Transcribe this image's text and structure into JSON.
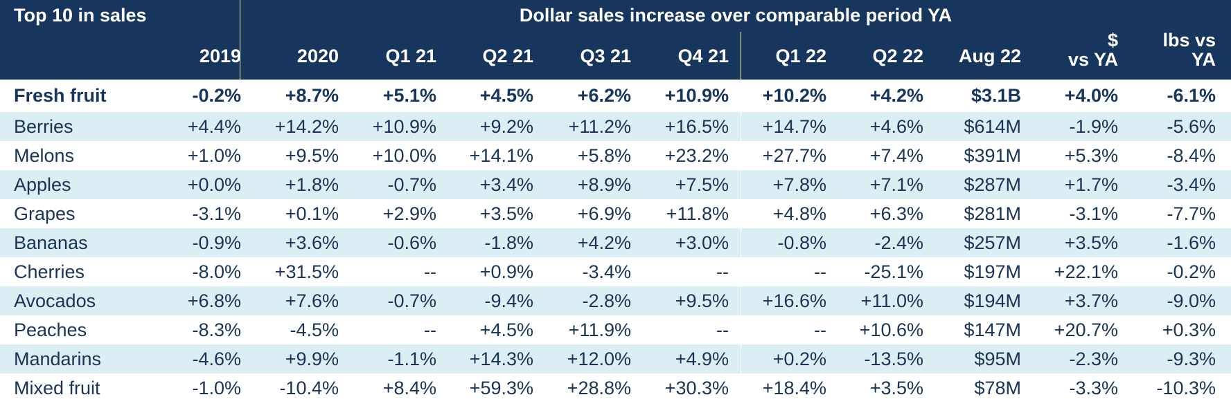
{
  "header": {
    "left_title": "Top 10 in sales",
    "right_title": "Dollar sales increase over comparable period YA",
    "columns": [
      {
        "key": "2019",
        "label": "2019"
      },
      {
        "key": "2020",
        "label": "2020"
      },
      {
        "key": "q1_21",
        "label": "Q1 21"
      },
      {
        "key": "q2_21",
        "label": "Q2 21"
      },
      {
        "key": "q3_21",
        "label": "Q3 21"
      },
      {
        "key": "q4_21",
        "label": "Q4 21"
      },
      {
        "key": "q1_22",
        "label": "Q1 22"
      },
      {
        "key": "q2_22",
        "label": "Q2 22"
      },
      {
        "key": "aug_22",
        "label": "Aug 22"
      },
      {
        "key": "dollar_vs_ya",
        "label": "$",
        "label2": "vs YA"
      },
      {
        "key": "lbs_vs_ya",
        "label": "lbs vs",
        "label2": "YA"
      }
    ]
  },
  "rows": [
    {
      "label": "Fresh fruit",
      "total": true,
      "values": [
        "-0.2%",
        "+8.7%",
        "+5.1%",
        "+4.5%",
        "+6.2%",
        "+10.9%",
        "+10.2%",
        "+4.2%",
        "$3.1B",
        "+4.0%",
        "-6.1%"
      ]
    },
    {
      "label": "Berries",
      "values": [
        "+4.4%",
        "+14.2%",
        "+10.9%",
        "+9.2%",
        "+11.2%",
        "+16.5%",
        "+14.7%",
        "+4.6%",
        "$614M",
        "-1.9%",
        "-5.6%"
      ]
    },
    {
      "label": "Melons",
      "values": [
        "+1.0%",
        "+9.5%",
        "+10.0%",
        "+14.1%",
        "+5.8%",
        "+23.2%",
        "+27.7%",
        "+7.4%",
        "$391M",
        "+5.3%",
        "-8.4%"
      ]
    },
    {
      "label": "Apples",
      "values": [
        "+0.0%",
        "+1.8%",
        "-0.7%",
        "+3.4%",
        "+8.9%",
        "+7.5%",
        "+7.8%",
        "+7.1%",
        "$287M",
        "+1.7%",
        "-3.4%"
      ]
    },
    {
      "label": "Grapes",
      "values": [
        "-3.1%",
        "+0.1%",
        "+2.9%",
        "+3.5%",
        "+6.9%",
        "+11.8%",
        "+4.8%",
        "+6.3%",
        "$281M",
        "-3.1%",
        "-7.7%"
      ]
    },
    {
      "label": "Bananas",
      "values": [
        "-0.9%",
        "+3.6%",
        "-0.6%",
        "-1.8%",
        "+4.2%",
        "+3.0%",
        "-0.8%",
        "-2.4%",
        "$257M",
        "+3.5%",
        "-1.6%"
      ]
    },
    {
      "label": "Cherries",
      "values": [
        "-8.0%",
        "+31.5%",
        "--",
        "+0.9%",
        "-3.4%",
        "--",
        "--",
        "-25.1%",
        "$197M",
        "+22.1%",
        "-0.2%"
      ]
    },
    {
      "label": "Avocados",
      "values": [
        "+6.8%",
        "+7.6%",
        "-0.7%",
        "-9.4%",
        "-2.8%",
        "+9.5%",
        "+16.6%",
        "+11.0%",
        "$194M",
        "+3.7%",
        "-9.0%"
      ]
    },
    {
      "label": "Peaches",
      "values": [
        "-8.3%",
        "-4.5%",
        "--",
        "+4.5%",
        "+11.9%",
        "--",
        "--",
        "+10.6%",
        "$147M",
        "+20.7%",
        "+0.3%"
      ]
    },
    {
      "label": "Mandarins",
      "values": [
        "-4.6%",
        "+9.9%",
        "-1.1%",
        "+14.3%",
        "+12.0%",
        "+4.9%",
        "+0.2%",
        "-13.5%",
        "$95M",
        "-2.3%",
        "-9.3%"
      ]
    },
    {
      "label": "Mixed fruit",
      "values": [
        "-1.0%",
        "-10.4%",
        "+8.4%",
        "+59.3%",
        "+28.8%",
        "+30.3%",
        "+18.4%",
        "+3.5%",
        "$78M",
        "-3.3%",
        "-10.3%"
      ]
    }
  ]
}
